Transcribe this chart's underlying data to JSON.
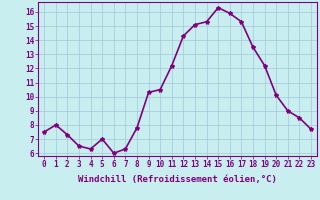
{
  "hours": [
    0,
    1,
    2,
    3,
    4,
    5,
    6,
    7,
    8,
    9,
    10,
    11,
    12,
    13,
    14,
    15,
    16,
    17,
    18,
    19,
    20,
    21,
    22,
    23
  ],
  "values": [
    7.5,
    8.0,
    7.3,
    6.5,
    6.3,
    7.0,
    6.0,
    6.3,
    7.8,
    10.3,
    10.5,
    12.2,
    14.3,
    15.1,
    15.3,
    16.3,
    15.9,
    15.3,
    13.5,
    12.2,
    10.1,
    9.0,
    8.5,
    7.7
  ],
  "line_color": "#800080",
  "marker": "*",
  "marker_size": 3,
  "background_color": "#c8eef0",
  "grid_color": "#a0c8d8",
  "xlabel": "Windchill (Refroidissement éolien,°C)",
  "ylim": [
    5.8,
    16.7
  ],
  "yticks": [
    6,
    7,
    8,
    9,
    10,
    11,
    12,
    13,
    14,
    15,
    16
  ],
  "xlim": [
    -0.5,
    23.5
  ],
  "axis_color": "#800080",
  "tick_color": "#800080",
  "label_color": "#800080",
  "line_width": 1.2,
  "tick_fontsize": 5.5,
  "xlabel_fontsize": 6.5
}
